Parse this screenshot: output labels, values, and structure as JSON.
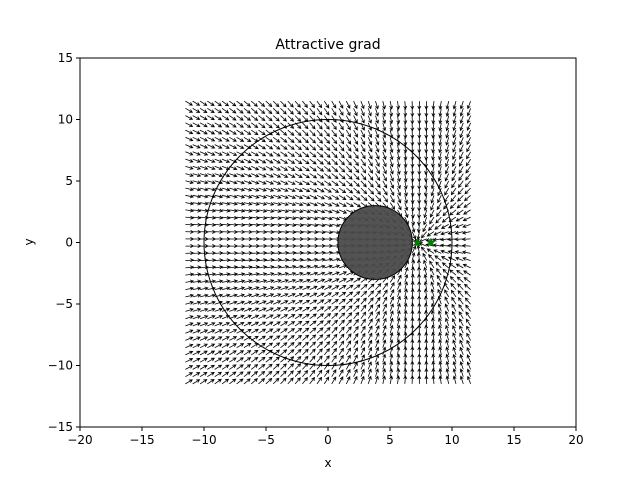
{
  "chart_data": {
    "type": "quiver",
    "title": "Attractive grad",
    "xlabel": "x",
    "ylabel": "y",
    "xlim": [
      -20,
      20
    ],
    "ylim": [
      -15,
      15
    ],
    "xticks": [
      -20,
      -15,
      -10,
      -5,
      0,
      5,
      10,
      15,
      20
    ],
    "yticks": [
      -15,
      -10,
      -5,
      0,
      5,
      10,
      15
    ],
    "xtick_labels": [
      "−20",
      "−15",
      "−10",
      "−5",
      "0",
      "5",
      "10",
      "15",
      "20"
    ],
    "ytick_labels": [
      "−15",
      "−10",
      "−5",
      "0",
      "5",
      "10",
      "15"
    ],
    "grid": false,
    "field_extent": {
      "x": [
        -11.5,
        11.5
      ],
      "y": [
        -11.5,
        11.5
      ]
    },
    "arrow_color": "#000000",
    "boundary_circle": {
      "center": [
        0,
        0
      ],
      "radius": 10,
      "fill": "none",
      "stroke": "#000000"
    },
    "obstacle": {
      "center": [
        3.8,
        0
      ],
      "radius": 3.0,
      "fill": "#4a4a4a",
      "stroke": "#000000"
    },
    "points": [
      {
        "x": 7.2,
        "y": 0,
        "marker": "star",
        "color": "#008000"
      },
      {
        "x": 8.3,
        "y": 0,
        "marker": "star",
        "color": "#008000"
      }
    ]
  }
}
